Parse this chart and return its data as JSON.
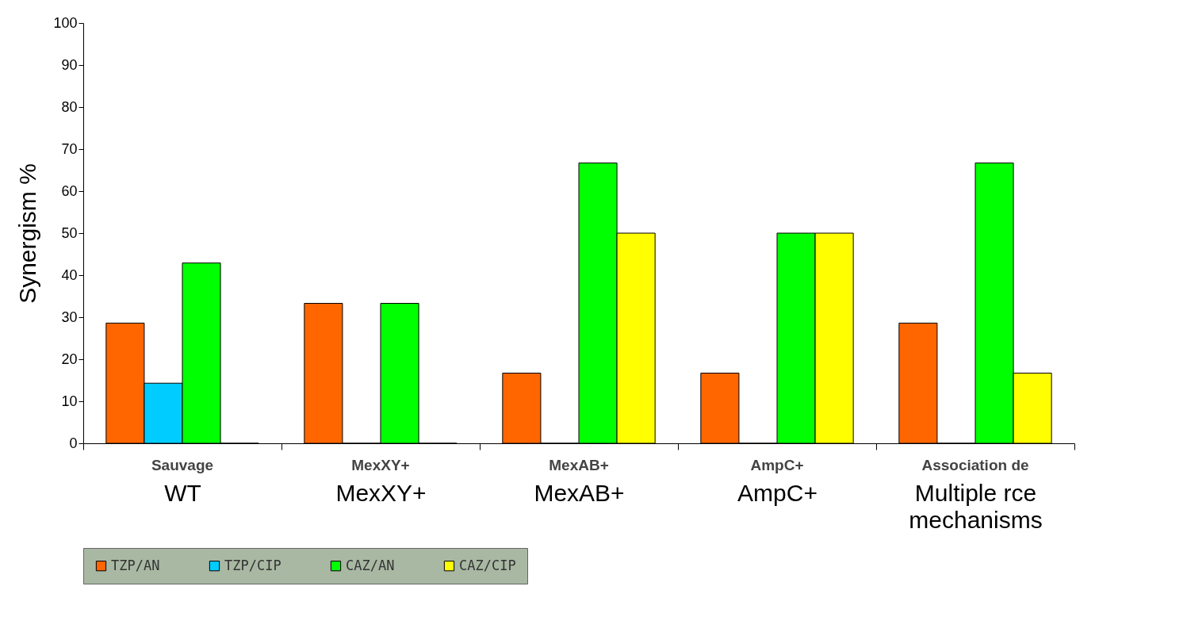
{
  "chart_data": {
    "type": "bar",
    "ylabel": "Synergism %",
    "categories": [
      "WT",
      "MexXY+",
      "MexAB+",
      "AmpC+",
      "Multiple rce mechanisms"
    ],
    "annotations": [
      "Sauvage",
      "MexXY+",
      "MexAB+",
      "AmpC+",
      "Association de"
    ],
    "series": [
      {
        "name": "TZP/AN",
        "color": "#ff6600",
        "values": [
          28.6,
          33.3,
          16.7,
          16.7,
          28.6
        ]
      },
      {
        "name": "TZP/CIP",
        "color": "#00ccff",
        "values": [
          14.3,
          0,
          0,
          0,
          0
        ]
      },
      {
        "name": "CAZ/AN",
        "color": "#00ff00",
        "values": [
          42.9,
          33.3,
          66.7,
          50,
          66.7
        ]
      },
      {
        "name": "CAZ/CIP",
        "color": "#ffff00",
        "values": [
          0,
          0,
          50,
          50,
          16.7
        ]
      }
    ],
    "ylim": [
      0,
      100
    ],
    "yticks": [
      0,
      10,
      20,
      30,
      40,
      50,
      60,
      70,
      80,
      90,
      100
    ],
    "grid": false,
    "legend": "bottom"
  }
}
